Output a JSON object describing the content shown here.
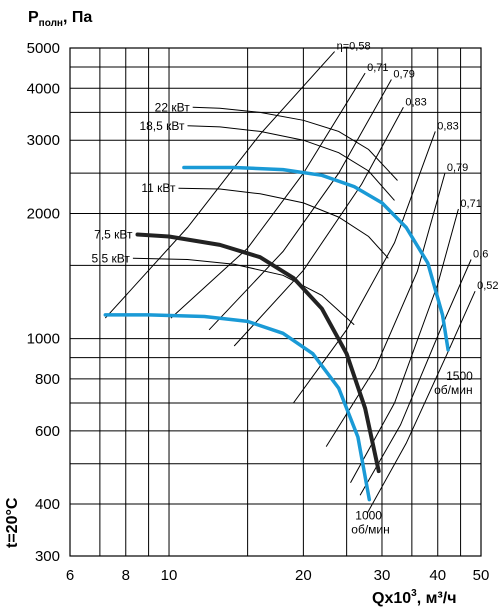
{
  "chart_data": {
    "type": "line",
    "title": "",
    "ylabel": "P",
    "ylabel_sub": "полн",
    "ylabel_unit": ", Па",
    "xlabel_main": "Qx10",
    "xlabel_sup": "3",
    "xlabel_unit": ", м³/ч",
    "side_label": "t=20°C",
    "x_scale": "log",
    "y_scale": "log",
    "xlim": [
      6,
      50
    ],
    "ylim": [
      300,
      5000
    ],
    "x_ticks": [
      6,
      8,
      10,
      20,
      30,
      40,
      50
    ],
    "x_tick_labels": [
      "6",
      "8",
      "10",
      "20",
      "30",
      "40",
      "50"
    ],
    "y_ticks": [
      300,
      400,
      600,
      800,
      1000,
      2000,
      3000,
      4000,
      5000
    ],
    "y_tick_labels": [
      "300",
      "400",
      "600",
      "800",
      "1000",
      "2000",
      "3000",
      "4000",
      "5000"
    ],
    "grid_x": [
      7,
      9,
      15,
      25,
      35,
      45
    ],
    "grid_y": [
      500,
      700,
      900,
      1500,
      2500,
      3500,
      4500
    ],
    "power_lines": [
      {
        "label": "22 кВт",
        "x": [
          11.3,
          13,
          16,
          20,
          24,
          28,
          32.5
        ],
        "y": [
          3600,
          3580,
          3500,
          3350,
          3150,
          2850,
          2400
        ]
      },
      {
        "label": "18,5 кВт",
        "x": [
          11.0,
          13,
          16,
          20,
          24,
          28,
          32
        ],
        "y": [
          3250,
          3230,
          3150,
          3000,
          2800,
          2530,
          2150
        ]
      },
      {
        "label": "11 кВт",
        "x": [
          10.5,
          13,
          16,
          20,
          24,
          28,
          31
        ],
        "y": [
          2300,
          2290,
          2230,
          2120,
          1960,
          1760,
          1560
        ]
      },
      {
        "label": "5,5 кВт",
        "x": [
          8.3,
          11,
          14,
          18,
          22,
          26
        ],
        "y": [
          1560,
          1550,
          1510,
          1420,
          1270,
          1080
        ]
      }
    ],
    "efficiency_lines": [
      {
        "label": "η=0,58",
        "x": [
          7.2,
          11,
          16,
          23.5
        ],
        "y": [
          1120,
          1850,
          3100,
          4900
        ]
      },
      {
        "label": "0,71",
        "x": [
          10.1,
          15,
          20,
          27.5
        ],
        "y": [
          1120,
          1650,
          2500,
          4350
        ]
      },
      {
        "label": "0,79",
        "x": [
          12.3,
          18,
          24,
          31.5
        ],
        "y": [
          1050,
          1620,
          2500,
          4200
        ]
      },
      {
        "label": "0,83",
        "x": [
          14,
          20,
          27,
          33.5
        ],
        "y": [
          960,
          1460,
          2350,
          3600
        ]
      },
      {
        "label": "0,83",
        "x": [
          19,
          25,
          32,
          39.5
        ],
        "y": [
          700,
          1050,
          1700,
          3150
        ]
      },
      {
        "label": "0,79",
        "x": [
          22.5,
          29,
          36,
          41.5
        ],
        "y": [
          550,
          850,
          1450,
          2500
        ]
      },
      {
        "label": "0,71",
        "x": [
          25.5,
          32,
          40,
          44.5
        ],
        "y": [
          450,
          700,
          1350,
          2050
        ]
      },
      {
        "label": "0,6",
        "x": [
          26.8,
          33,
          41,
          47.5
        ],
        "y": [
          420,
          620,
          1080,
          1550
        ]
      },
      {
        "label": "0,52",
        "x": [
          27.8,
          34,
          42,
          48.5
        ],
        "y": [
          380,
          560,
          920,
          1300
        ]
      }
    ],
    "series": [
      {
        "name": "1500 об/мин",
        "color": "#1a9ad6",
        "x": [
          10.8,
          14,
          18,
          22,
          26,
          30,
          34,
          38,
          41,
          42.2
        ],
        "y": [
          2580,
          2580,
          2550,
          2470,
          2320,
          2120,
          1850,
          1520,
          1140,
          940
        ]
      },
      {
        "name": "1000 об/мин",
        "color": "#1a9ad6",
        "x": [
          7.2,
          9,
          12,
          15,
          18,
          21,
          24,
          26.5,
          28.1
        ],
        "y": [
          1140,
          1140,
          1130,
          1100,
          1030,
          920,
          760,
          580,
          410
        ]
      },
      {
        "name": "7,5 кВт",
        "color": "#222222",
        "x": [
          8.5,
          10,
          13,
          16,
          19,
          22,
          25,
          27.5,
          29.5
        ],
        "y": [
          1780,
          1760,
          1680,
          1570,
          1400,
          1180,
          920,
          680,
          480
        ]
      }
    ],
    "curve_labels": {
      "rpm_1500_line1": "1500",
      "rpm_1500_line2": "об/мин",
      "rpm_1000_line1": "1000",
      "rpm_1000_line2": "об/мин",
      "power_7_5": "7,5 кВт"
    }
  },
  "colors": {
    "grid": "#000000",
    "operating_curve": "#1a9ad6",
    "motor_curve": "#222222"
  }
}
